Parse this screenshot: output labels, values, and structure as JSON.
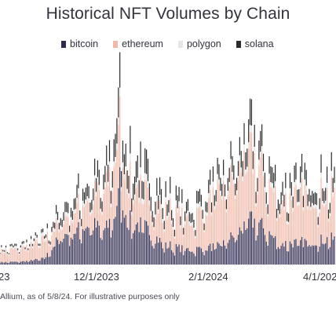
{
  "chart_data": {
    "type": "bar",
    "stacked": true,
    "title": "Historical NFT Volumes by Chain",
    "legend_position": "top",
    "grid": false,
    "series": [
      {
        "name": "bitcoin",
        "color": "#2e2a4f"
      },
      {
        "name": "ethereum",
        "color": "#f2b9a8"
      },
      {
        "name": "polygon",
        "color": "#e6e6e6"
      },
      {
        "name": "solana",
        "color": "#2b2b2b"
      }
    ],
    "x_tick_labels": [
      "23",
      "12/1/2023",
      "2/1/2024",
      "4/1/202"
    ],
    "x_range": [
      "2023-09-25",
      "2024-05-08"
    ],
    "y_scale": "relative",
    "y_range": [
      0,
      250
    ],
    "data_note": "daily stacked volumes, relative units estimated from bar heights (no y-axis printed)",
    "key_points": [
      {
        "date": "2023-09-25",
        "bitcoin": 3,
        "ethereum": 14,
        "polygon": 2,
        "solana": 2
      },
      {
        "date": "2023-10-10",
        "bitcoin": 4,
        "ethereum": 18,
        "polygon": 3,
        "solana": 3
      },
      {
        "date": "2023-10-25",
        "bitcoin": 8,
        "ethereum": 25,
        "polygon": 4,
        "solana": 4
      },
      {
        "date": "2023-11-05",
        "bitcoin": 38,
        "ethereum": 20,
        "polygon": 5,
        "solana": 12
      },
      {
        "date": "2023-11-15",
        "bitcoin": 45,
        "ethereum": 30,
        "polygon": 6,
        "solana": 16
      },
      {
        "date": "2023-11-25",
        "bitcoin": 55,
        "ethereum": 38,
        "polygon": 6,
        "solana": 18
      },
      {
        "date": "2023-12-05",
        "bitcoin": 45,
        "ethereum": 50,
        "polygon": 6,
        "solana": 20
      },
      {
        "date": "2023-12-12",
        "bitcoin": 70,
        "ethereum": 80,
        "polygon": 8,
        "solana": 34
      },
      {
        "date": "2023-12-15",
        "bitcoin": 110,
        "ethereum": 80,
        "polygon": 10,
        "solana": 40
      },
      {
        "date": "2023-12-20",
        "bitcoin": 60,
        "ethereum": 55,
        "polygon": 8,
        "solana": 30
      },
      {
        "date": "2024-01-01",
        "bitcoin": 50,
        "ethereum": 45,
        "polygon": 8,
        "solana": 28
      },
      {
        "date": "2024-01-15",
        "bitcoin": 25,
        "ethereum": 45,
        "polygon": 6,
        "solana": 18
      },
      {
        "date": "2024-02-01",
        "bitcoin": 20,
        "ethereum": 40,
        "polygon": 5,
        "solana": 14
      },
      {
        "date": "2024-02-20",
        "bitcoin": 25,
        "ethereum": 70,
        "polygon": 6,
        "solana": 18
      },
      {
        "date": "2024-03-05",
        "bitcoin": 45,
        "ethereum": 80,
        "polygon": 7,
        "solana": 22
      },
      {
        "date": "2024-03-12",
        "bitcoin": 60,
        "ethereum": 90,
        "polygon": 8,
        "solana": 30
      },
      {
        "date": "2024-03-18",
        "bitcoin": 55,
        "ethereum": 75,
        "polygon": 7,
        "solana": 25
      },
      {
        "date": "2024-04-01",
        "bitcoin": 28,
        "ethereum": 55,
        "polygon": 6,
        "solana": 18
      },
      {
        "date": "2024-04-15",
        "bitcoin": 30,
        "ethereum": 65,
        "polygon": 6,
        "solana": 20
      },
      {
        "date": "2024-05-08",
        "bitcoin": 35,
        "ethereum": 60,
        "polygon": 6,
        "solana": 20
      }
    ],
    "peaks": [
      {
        "date": "2023-12-14",
        "total": 238
      },
      {
        "date": "2024-03-08",
        "total": 190
      },
      {
        "date": "2023-11-30",
        "total": 140
      },
      {
        "date": "2024-01-18",
        "total": 118
      }
    ]
  },
  "x_ticks_text": [
    "23",
    "12/1/2023",
    "2/1/2024",
    "4/1/202"
  ],
  "source_text": "Allium, as of 5/8/24. For illustrative purposes only"
}
